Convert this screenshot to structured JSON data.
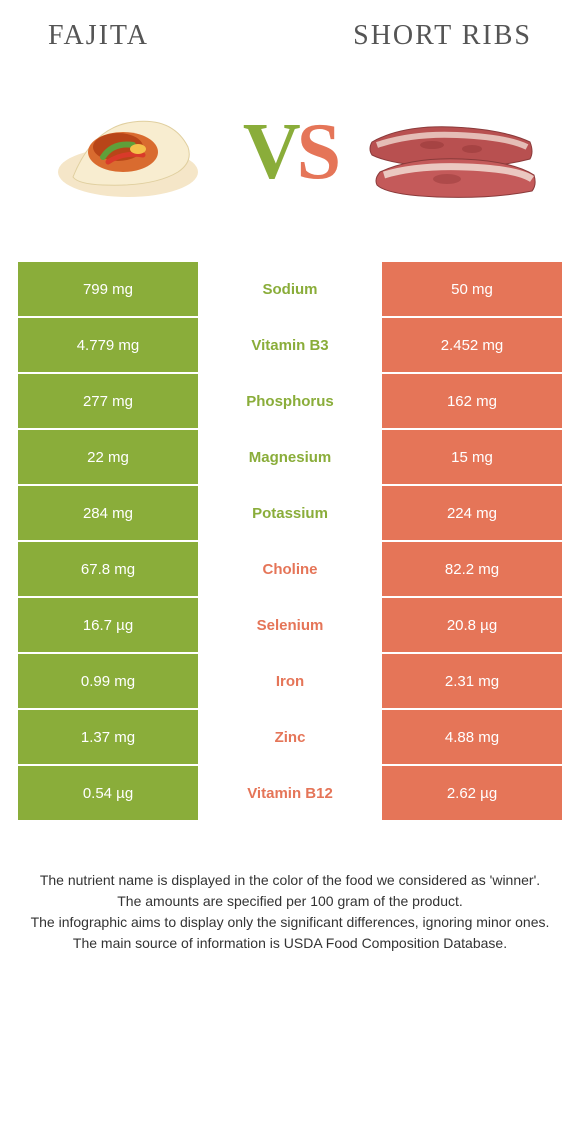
{
  "header": {
    "left": "FAJITA",
    "right": "SHORT RIBS"
  },
  "vs": {
    "v": "V",
    "s": "S"
  },
  "colors": {
    "left": "#8aad3a",
    "right": "#e57558"
  },
  "rows": [
    {
      "left": "799 mg",
      "label": "Sodium",
      "right": "50 mg",
      "winner": "left"
    },
    {
      "left": "4.779 mg",
      "label": "Vitamin B3",
      "right": "2.452 mg",
      "winner": "left"
    },
    {
      "left": "277 mg",
      "label": "Phosphorus",
      "right": "162 mg",
      "winner": "left"
    },
    {
      "left": "22 mg",
      "label": "Magnesium",
      "right": "15 mg",
      "winner": "left"
    },
    {
      "left": "284 mg",
      "label": "Potassium",
      "right": "224 mg",
      "winner": "left"
    },
    {
      "left": "67.8 mg",
      "label": "Choline",
      "right": "82.2 mg",
      "winner": "right"
    },
    {
      "left": "16.7 µg",
      "label": "Selenium",
      "right": "20.8 µg",
      "winner": "right"
    },
    {
      "left": "0.99 mg",
      "label": "Iron",
      "right": "2.31 mg",
      "winner": "right"
    },
    {
      "left": "1.37 mg",
      "label": "Zinc",
      "right": "4.88 mg",
      "winner": "right"
    },
    {
      "left": "0.54 µg",
      "label": "Vitamin B12",
      "right": "2.62 µg",
      "winner": "right"
    }
  ],
  "footer": {
    "l1": "The nutrient name is displayed in the color of the food we considered as 'winner'.",
    "l2": "The amounts are specified per 100 gram of the product.",
    "l3": "The infographic aims to display only the significant differences, ignoring minor ones.",
    "l4": "The main source of information is USDA Food Composition Database."
  }
}
